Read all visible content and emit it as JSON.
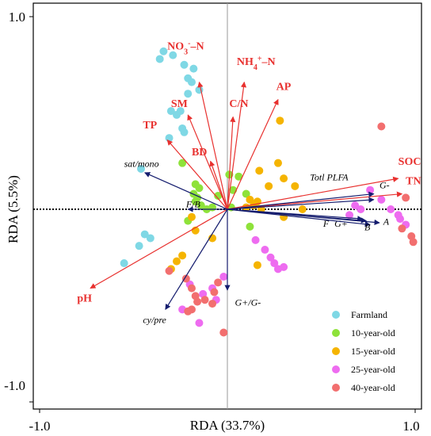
{
  "chart_data": {
    "type": "scatter",
    "title": "",
    "xlabel": "RDA (33.7%)",
    "ylabel": "RDA (5.5%)",
    "xlim": [
      -1.0,
      1.0
    ],
    "ylim": [
      -1.0,
      1.0
    ],
    "xticks": [
      "-1.0",
      "1.0"
    ],
    "yticks": [
      "1.0",
      "-1.0"
    ],
    "grid": false,
    "legend_position": "bottom-right",
    "colors": {
      "env_arrow": "#e8312f",
      "microbial_arrow": "#141c6e",
      "zero_line_x": "#999999",
      "zero_line_y": "#000000"
    },
    "env_vectors": [
      {
        "label_html": "NO<sub>3</sub><sup>-</sup>–N",
        "x": -0.15,
        "y": 0.66,
        "label_x": -0.32,
        "label_y": 0.83
      },
      {
        "label_html": "NH<sub>4</sub><sup>+</sup>–N",
        "x": 0.09,
        "y": 0.66,
        "label_x": 0.05,
        "label_y": 0.75
      },
      {
        "label": "AP",
        "x": 0.27,
        "y": 0.57,
        "label_x": 0.26,
        "label_y": 0.62
      },
      {
        "label": "C/N",
        "x": 0.03,
        "y": 0.48,
        "label_x": 0.01,
        "label_y": 0.53
      },
      {
        "label": "SM",
        "x": -0.21,
        "y": 0.49,
        "label_x": -0.3,
        "label_y": 0.53
      },
      {
        "label": "TP",
        "x": -0.32,
        "y": 0.36,
        "label_x": -0.45,
        "label_y": 0.42
      },
      {
        "label": "BD",
        "x": -0.09,
        "y": 0.25,
        "label_x": -0.19,
        "label_y": 0.28
      },
      {
        "label": "SOC",
        "x": 0.91,
        "y": 0.16,
        "label_x": 0.91,
        "label_y": 0.23
      },
      {
        "label": "TN",
        "x": 0.93,
        "y": 0.08,
        "label_x": 0.95,
        "label_y": 0.13
      },
      {
        "label": "pH",
        "x": -0.73,
        "y": -0.41,
        "label_x": -0.8,
        "label_y": -0.48
      }
    ],
    "microbial_vectors": [
      {
        "label": "sat/mono",
        "x": -0.44,
        "y": 0.19,
        "label_x": -0.55,
        "label_y": 0.22
      },
      {
        "label": "Totl PLFA",
        "x": 0.78,
        "y": 0.08,
        "label_x": 0.44,
        "label_y": 0.15
      },
      {
        "label": "G-",
        "x": 0.78,
        "y": 0.05,
        "label_x": 0.81,
        "label_y": 0.11
      },
      {
        "label": "F/B",
        "x": -0.21,
        "y": 0.0,
        "label_x": -0.22,
        "label_y": 0.01
      },
      {
        "label": "F",
        "x": 0.72,
        "y": -0.05,
        "label_x": 0.51,
        "label_y": -0.09
      },
      {
        "label": "G+",
        "x": 0.74,
        "y": -0.06,
        "label_x": 0.57,
        "label_y": -0.09
      },
      {
        "label": "B",
        "x": 0.76,
        "y": -0.08,
        "label_x": 0.73,
        "label_y": -0.11
      },
      {
        "label": "A",
        "x": 0.81,
        "y": -0.07,
        "label_x": 0.83,
        "label_y": -0.08
      },
      {
        "label": "G+/G-",
        "x": 0.0,
        "y": -0.42,
        "label_x": 0.04,
        "label_y": -0.5
      },
      {
        "label": "cy/pre",
        "x": -0.33,
        "y": -0.52,
        "label_x": -0.45,
        "label_y": -0.59
      }
    ],
    "series": [
      {
        "name": "Farmland",
        "color": "#7fd8e5",
        "x": [
          -0.34,
          -0.36,
          -0.29,
          -0.23,
          -0.18,
          -0.21,
          -0.19,
          -0.15,
          -0.21,
          -0.25,
          -0.27,
          -0.3,
          -0.24,
          -0.23,
          -0.31,
          -0.46,
          -0.44,
          -0.41,
          -0.47,
          -0.55
        ],
        "y": [
          0.82,
          0.78,
          0.8,
          0.75,
          0.73,
          0.68,
          0.66,
          0.62,
          0.6,
          0.51,
          0.49,
          0.51,
          0.42,
          0.4,
          0.37,
          0.21,
          -0.13,
          -0.15,
          -0.19,
          -0.28
        ]
      },
      {
        "name": "10-year-old",
        "color": "#8ee23a",
        "x": [
          -0.24,
          -0.17,
          -0.15,
          -0.18,
          -0.16,
          -0.17,
          -0.14,
          -0.11,
          -0.08,
          0.01,
          0.06,
          0.03,
          0.1,
          -0.05,
          -0.21,
          0.02,
          0.12
        ],
        "y": [
          0.24,
          0.13,
          0.11,
          0.08,
          0.06,
          0.04,
          0.02,
          0.0,
          0.01,
          0.18,
          0.17,
          0.1,
          0.08,
          0.07,
          -0.06,
          0.01,
          -0.09
        ]
      },
      {
        "name": "15-year-old",
        "color": "#f5b400",
        "x": [
          0.28,
          0.17,
          0.27,
          0.3,
          0.36,
          0.22,
          0.12,
          0.1,
          0.14,
          0.16,
          0.18,
          0.4,
          0.3,
          -0.17,
          -0.19,
          -0.24,
          -0.27,
          -0.3,
          -0.08,
          0.16
        ],
        "y": [
          0.46,
          0.2,
          0.24,
          0.16,
          0.12,
          0.12,
          0.05,
          0.01,
          0.02,
          0.04,
          0.0,
          0.0,
          -0.04,
          -0.11,
          -0.04,
          -0.24,
          -0.27,
          -0.31,
          -0.15,
          -0.29
        ]
      },
      {
        "name": "25-year-old",
        "color": "#ee6cf0",
        "x": [
          0.76,
          0.82,
          0.87,
          0.91,
          0.92,
          0.95,
          0.68,
          0.71,
          0.65,
          0.2,
          0.23,
          0.25,
          0.27,
          0.3,
          0.15,
          -0.02,
          -0.08,
          -0.13,
          -0.06,
          -0.2,
          -0.24,
          -0.15
        ],
        "y": [
          0.1,
          0.05,
          0.0,
          -0.03,
          -0.05,
          -0.08,
          0.02,
          0.0,
          -0.03,
          -0.21,
          -0.25,
          -0.28,
          -0.31,
          -0.3,
          -0.16,
          -0.35,
          -0.41,
          -0.44,
          -0.47,
          -0.39,
          -0.52,
          -0.59
        ]
      },
      {
        "name": "40-year-old",
        "color": "#f26f6f",
        "x": [
          0.82,
          0.95,
          0.93,
          0.98,
          0.99,
          -0.31,
          -0.22,
          -0.19,
          -0.17,
          -0.12,
          -0.07,
          -0.05,
          -0.08,
          -0.16,
          -0.19,
          -0.21,
          -0.02
        ],
        "y": [
          0.43,
          0.06,
          -0.1,
          -0.14,
          -0.17,
          -0.32,
          -0.36,
          -0.41,
          -0.45,
          -0.47,
          -0.43,
          -0.38,
          -0.49,
          -0.48,
          -0.52,
          -0.53,
          -0.64
        ]
      }
    ]
  }
}
